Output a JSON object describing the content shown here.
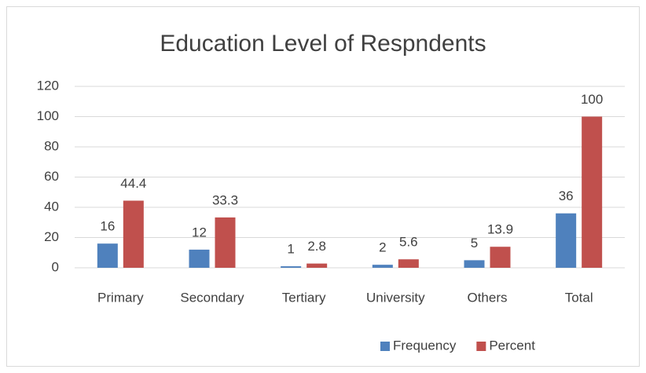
{
  "chart_data": {
    "type": "bar",
    "title": "Education Level of Respndents",
    "categories": [
      "Primary",
      "Secondary",
      "Tertiary",
      "University",
      "Others",
      "Total"
    ],
    "series": [
      {
        "name": "Frequency",
        "color": "#4f81bd",
        "values": [
          16,
          12,
          1,
          2,
          5,
          36
        ]
      },
      {
        "name": "Percent",
        "color": "#c0504d",
        "values": [
          44.4,
          33.3,
          2.8,
          5.6,
          13.9,
          100
        ]
      }
    ],
    "ylim": [
      0,
      120
    ],
    "yticks": [
      0,
      20,
      40,
      60,
      80,
      100,
      120
    ],
    "grid": true,
    "legend": "bottom"
  }
}
